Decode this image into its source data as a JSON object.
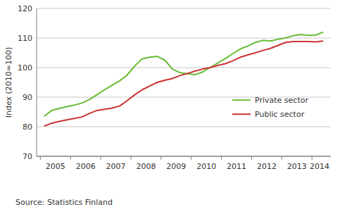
{
  "chart_data": {
    "type": "line",
    "y_label": "Index (2010=100)",
    "annotations": [
      "Source: Statistics Finland"
    ],
    "categories": [
      "2005",
      null,
      null,
      null,
      "2006",
      null,
      null,
      null,
      "2007",
      null,
      null,
      null,
      "2008",
      null,
      null,
      null,
      "2009",
      null,
      null,
      null,
      "2010",
      null,
      null,
      null,
      "2011",
      null,
      null,
      null,
      "2012",
      null,
      null,
      null,
      "2013",
      null,
      null,
      null,
      "2014",
      null
    ],
    "series": [
      {
        "name": "Private sector",
        "color": "#66bb33",
        "values": [
          83.5,
          85.5,
          86.2,
          86.8,
          87.3,
          88.0,
          89.2,
          90.8,
          92.5,
          94.0,
          95.5,
          97.5,
          100.5,
          103.0,
          103.5,
          103.8,
          102.5,
          99.5,
          98.3,
          97.9,
          97.6,
          98.5,
          100.0,
          101.5,
          103.0,
          104.7,
          106.3,
          107.3,
          108.5,
          109.2,
          109.0,
          109.6,
          110.0,
          110.8,
          111.2,
          110.9,
          111.0,
          112.0
        ]
      },
      {
        "name": "Public sector",
        "color": "#cc3333",
        "values": [
          80.2,
          81.2,
          81.8,
          82.3,
          82.8,
          83.3,
          84.5,
          85.5,
          85.9,
          86.3,
          87.0,
          88.8,
          90.8,
          92.5,
          93.8,
          95.0,
          95.7,
          96.3,
          97.3,
          98.0,
          98.8,
          99.5,
          100.0,
          100.7,
          101.3,
          102.3,
          103.5,
          104.3,
          105.0,
          105.8,
          106.5,
          107.5,
          108.5,
          108.8,
          108.8,
          108.8,
          108.7,
          109.0
        ]
      }
    ],
    "ylim": [
      70,
      120
    ],
    "yticks": [
      70,
      80,
      90,
      100,
      110,
      120
    ],
    "grid": true,
    "legend": "lower right"
  }
}
